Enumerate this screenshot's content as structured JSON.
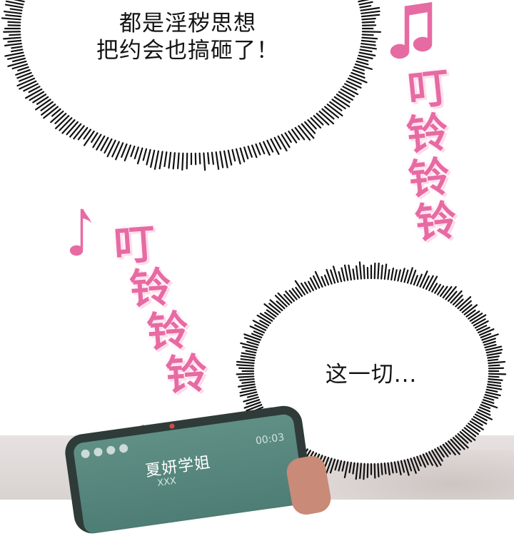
{
  "bubble_top": {
    "lines": [
      "都是淫秽思想",
      "把约会也搞砸了！"
    ]
  },
  "bubble_bottom": {
    "text": "这一切..."
  },
  "sfx_right": {
    "chars": [
      "叮",
      "铃",
      "铃",
      "铃"
    ],
    "color": "#e76ba3"
  },
  "sfx_left": {
    "chars": [
      "叮",
      "铃",
      "铃",
      "铃"
    ],
    "color": "#e76ba3"
  },
  "phone": {
    "caller_name": "夏妍学姐",
    "caller_sub": "XXX",
    "call_time": "00:03",
    "screen_color": "#5f8f85"
  },
  "icons": [
    "music-note-icon",
    "music-note-icon",
    "music-note-icon"
  ]
}
